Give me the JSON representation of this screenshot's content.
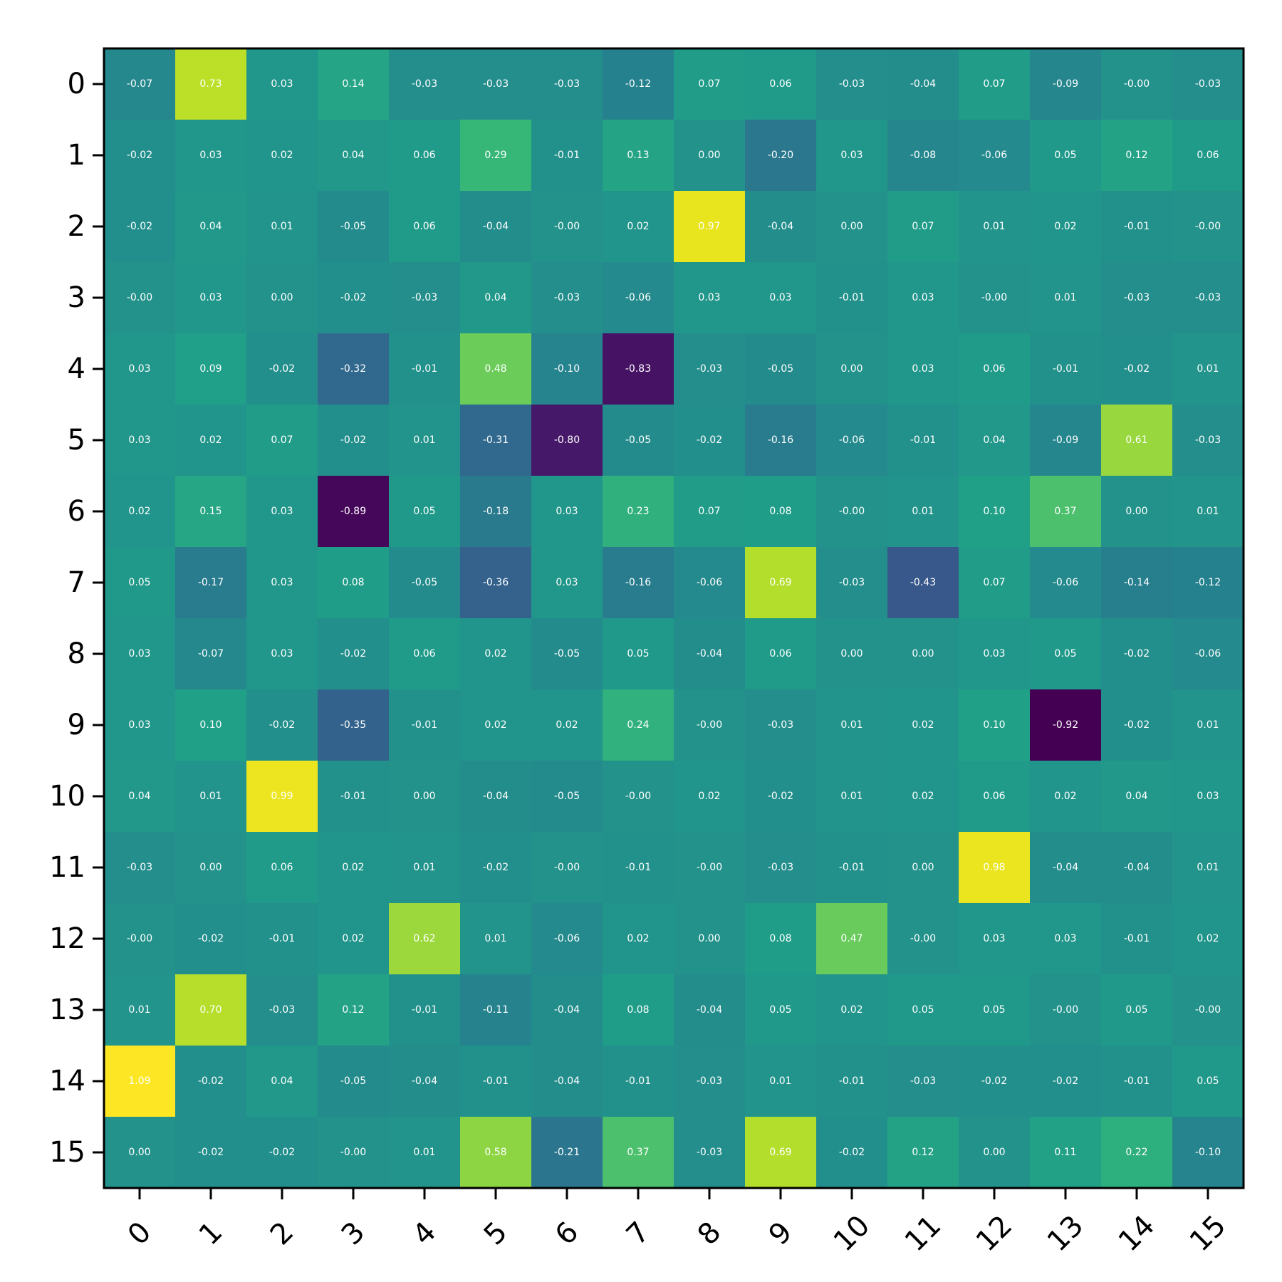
{
  "chart_data": {
    "type": "heatmap",
    "title": "",
    "xlabel": "",
    "ylabel": "",
    "colormap": "viridis",
    "vmin": -0.92,
    "vmax": 1.09,
    "x_categories": [
      "0",
      "1",
      "2",
      "3",
      "4",
      "5",
      "6",
      "7",
      "8",
      "9",
      "10",
      "11",
      "12",
      "13",
      "14",
      "15"
    ],
    "y_categories": [
      "0",
      "1",
      "2",
      "3",
      "4",
      "5",
      "6",
      "7",
      "8",
      "9",
      "10",
      "11",
      "12",
      "13",
      "14",
      "15"
    ],
    "value_format": "2 decimals",
    "values": [
      [
        -0.07,
        0.73,
        0.03,
        0.14,
        -0.03,
        -0.03,
        -0.03,
        -0.12,
        0.07,
        0.06,
        -0.03,
        -0.04,
        0.07,
        -0.09,
        -0.0,
        -0.03
      ],
      [
        -0.02,
        0.03,
        0.02,
        0.04,
        0.06,
        0.29,
        -0.01,
        0.13,
        0.0,
        -0.2,
        0.03,
        -0.08,
        -0.06,
        0.05,
        0.12,
        0.06
      ],
      [
        -0.02,
        0.04,
        0.01,
        -0.05,
        0.06,
        -0.04,
        -0.0,
        0.02,
        0.97,
        -0.04,
        0.0,
        0.07,
        0.01,
        0.02,
        -0.01,
        -0.0
      ],
      [
        -0.0,
        0.03,
        0.0,
        -0.02,
        -0.03,
        0.04,
        -0.03,
        -0.06,
        0.03,
        0.03,
        -0.01,
        0.03,
        -0.0,
        0.01,
        -0.03,
        -0.03
      ],
      [
        0.03,
        0.09,
        -0.02,
        -0.32,
        -0.01,
        0.48,
        -0.1,
        -0.83,
        -0.03,
        -0.05,
        0.0,
        0.03,
        0.06,
        -0.01,
        -0.02,
        0.01
      ],
      [
        0.03,
        0.02,
        0.07,
        -0.02,
        0.01,
        -0.31,
        -0.8,
        -0.05,
        -0.02,
        -0.16,
        -0.06,
        -0.01,
        0.04,
        -0.09,
        0.61,
        -0.03
      ],
      [
        0.02,
        0.15,
        0.03,
        -0.89,
        0.05,
        -0.18,
        0.03,
        0.23,
        0.07,
        0.08,
        -0.0,
        0.01,
        0.1,
        0.37,
        0.0,
        0.01
      ],
      [
        0.05,
        -0.17,
        0.03,
        0.08,
        -0.05,
        -0.36,
        0.03,
        -0.16,
        -0.06,
        0.69,
        -0.03,
        -0.43,
        0.07,
        -0.06,
        -0.14,
        -0.12
      ],
      [
        0.03,
        -0.07,
        0.03,
        -0.02,
        0.06,
        0.02,
        -0.05,
        0.05,
        -0.04,
        0.06,
        0.0,
        0.0,
        0.03,
        0.05,
        -0.02,
        -0.06
      ],
      [
        0.03,
        0.1,
        -0.02,
        -0.35,
        -0.01,
        0.02,
        0.02,
        0.24,
        -0.0,
        -0.03,
        0.01,
        0.02,
        0.1,
        -0.92,
        -0.02,
        0.01
      ],
      [
        0.04,
        0.01,
        0.99,
        -0.01,
        0.0,
        -0.04,
        -0.05,
        -0.0,
        0.02,
        -0.02,
        0.01,
        0.02,
        0.06,
        0.02,
        0.04,
        0.03
      ],
      [
        -0.03,
        0.0,
        0.06,
        0.02,
        0.01,
        -0.02,
        -0.0,
        -0.01,
        -0.0,
        -0.03,
        -0.01,
        0.0,
        0.98,
        -0.04,
        -0.04,
        0.01
      ],
      [
        -0.0,
        -0.02,
        -0.01,
        0.02,
        0.62,
        0.01,
        -0.06,
        0.02,
        0.0,
        0.08,
        0.47,
        -0.0,
        0.03,
        0.03,
        -0.01,
        0.02
      ],
      [
        0.01,
        0.7,
        -0.03,
        0.12,
        -0.01,
        -0.11,
        -0.04,
        0.08,
        -0.04,
        0.05,
        0.02,
        0.05,
        0.05,
        -0.0,
        0.05,
        -0.0
      ],
      [
        1.09,
        -0.02,
        0.04,
        -0.05,
        -0.04,
        -0.01,
        -0.04,
        -0.01,
        -0.03,
        0.01,
        -0.01,
        -0.03,
        -0.02,
        -0.02,
        -0.01,
        0.05
      ],
      [
        0.0,
        -0.02,
        -0.02,
        -0.0,
        0.01,
        0.58,
        -0.21,
        0.37,
        -0.03,
        0.69,
        -0.02,
        0.12,
        0.0,
        0.11,
        0.22,
        -0.1
      ]
    ],
    "values_text": [
      [
        "-0.07",
        "0.73",
        "0.03",
        "0.14",
        "-0.03",
        "-0.03",
        "-0.03",
        "-0.12",
        "0.07",
        "0.06",
        "-0.03",
        "-0.04",
        "0.07",
        "-0.09",
        "-0.00",
        "-0.03"
      ],
      [
        "-0.02",
        "0.03",
        "0.02",
        "0.04",
        "0.06",
        "0.29",
        "-0.01",
        "0.13",
        "0.00",
        "-0.20",
        "0.03",
        "-0.08",
        "-0.06",
        "0.05",
        "0.12",
        "0.06"
      ],
      [
        "-0.02",
        "0.04",
        "0.01",
        "-0.05",
        "0.06",
        "-0.04",
        "-0.00",
        "0.02",
        "0.97",
        "-0.04",
        "0.00",
        "0.07",
        "0.01",
        "0.02",
        "-0.01",
        "-0.00"
      ],
      [
        "-0.00",
        "0.03",
        "0.00",
        "-0.02",
        "-0.03",
        "0.04",
        "-0.03",
        "-0.06",
        "0.03",
        "0.03",
        "-0.01",
        "0.03",
        "-0.00",
        "0.01",
        "-0.03",
        "-0.03"
      ],
      [
        "0.03",
        "0.09",
        "-0.02",
        "-0.32",
        "-0.01",
        "0.48",
        "-0.10",
        "-0.83",
        "-0.03",
        "-0.05",
        "0.00",
        "0.03",
        "0.06",
        "-0.01",
        "-0.02",
        "0.01"
      ],
      [
        "0.03",
        "0.02",
        "0.07",
        "-0.02",
        "0.01",
        "-0.31",
        "-0.80",
        "-0.05",
        "-0.02",
        "-0.16",
        "-0.06",
        "-0.01",
        "0.04",
        "-0.09",
        "0.61",
        "-0.03"
      ],
      [
        "0.02",
        "0.15",
        "0.03",
        "-0.89",
        "0.05",
        "-0.18",
        "0.03",
        "0.23",
        "0.07",
        "0.08",
        "-0.00",
        "0.01",
        "0.10",
        "0.37",
        "0.00",
        "0.01"
      ],
      [
        "0.05",
        "-0.17",
        "0.03",
        "0.08",
        "-0.05",
        "-0.36",
        "0.03",
        "-0.16",
        "-0.06",
        "0.69",
        "-0.03",
        "-0.43",
        "0.07",
        "-0.06",
        "-0.14",
        "-0.12"
      ],
      [
        "0.03",
        "-0.07",
        "0.03",
        "-0.02",
        "0.06",
        "0.02",
        "-0.05",
        "0.05",
        "-0.04",
        "0.06",
        "0.00",
        "0.00",
        "0.03",
        "0.05",
        "-0.02",
        "-0.06"
      ],
      [
        "0.03",
        "0.10",
        "-0.02",
        "-0.35",
        "-0.01",
        "0.02",
        "0.02",
        "0.24",
        "-0.00",
        "-0.03",
        "0.01",
        "0.02",
        "0.10",
        "-0.92",
        "-0.02",
        "0.01"
      ],
      [
        "0.04",
        "0.01",
        "0.99",
        "-0.01",
        "0.00",
        "-0.04",
        "-0.05",
        "-0.00",
        "0.02",
        "-0.02",
        "0.01",
        "0.02",
        "0.06",
        "0.02",
        "0.04",
        "0.03"
      ],
      [
        "-0.03",
        "0.00",
        "0.06",
        "0.02",
        "0.01",
        "-0.02",
        "-0.00",
        "-0.01",
        "-0.00",
        "-0.03",
        "-0.01",
        "0.00",
        "0.98",
        "-0.04",
        "-0.04",
        "0.01"
      ],
      [
        "-0.00",
        "-0.02",
        "-0.01",
        "0.02",
        "0.62",
        "0.01",
        "-0.06",
        "0.02",
        "0.00",
        "0.08",
        "0.47",
        "-0.00",
        "0.03",
        "0.03",
        "-0.01",
        "0.02"
      ],
      [
        "0.01",
        "0.70",
        "-0.03",
        "0.12",
        "-0.01",
        "-0.11",
        "-0.04",
        "0.08",
        "-0.04",
        "0.05",
        "0.02",
        "0.05",
        "0.05",
        "-0.00",
        "0.05",
        "-0.00"
      ],
      [
        "1.09",
        "-0.02",
        "0.04",
        "-0.05",
        "-0.04",
        "-0.01",
        "-0.04",
        "-0.01",
        "-0.03",
        "0.01",
        "-0.01",
        "-0.03",
        "-0.02",
        "-0.02",
        "-0.01",
        "0.05"
      ],
      [
        "0.00",
        "-0.02",
        "-0.02",
        "-0.00",
        "0.01",
        "0.58",
        "-0.21",
        "0.37",
        "-0.03",
        "0.69",
        "-0.02",
        "0.12",
        "0.00",
        "0.11",
        "0.22",
        "-0.10"
      ]
    ],
    "grid": false,
    "legend": "none",
    "colorbar": false
  }
}
